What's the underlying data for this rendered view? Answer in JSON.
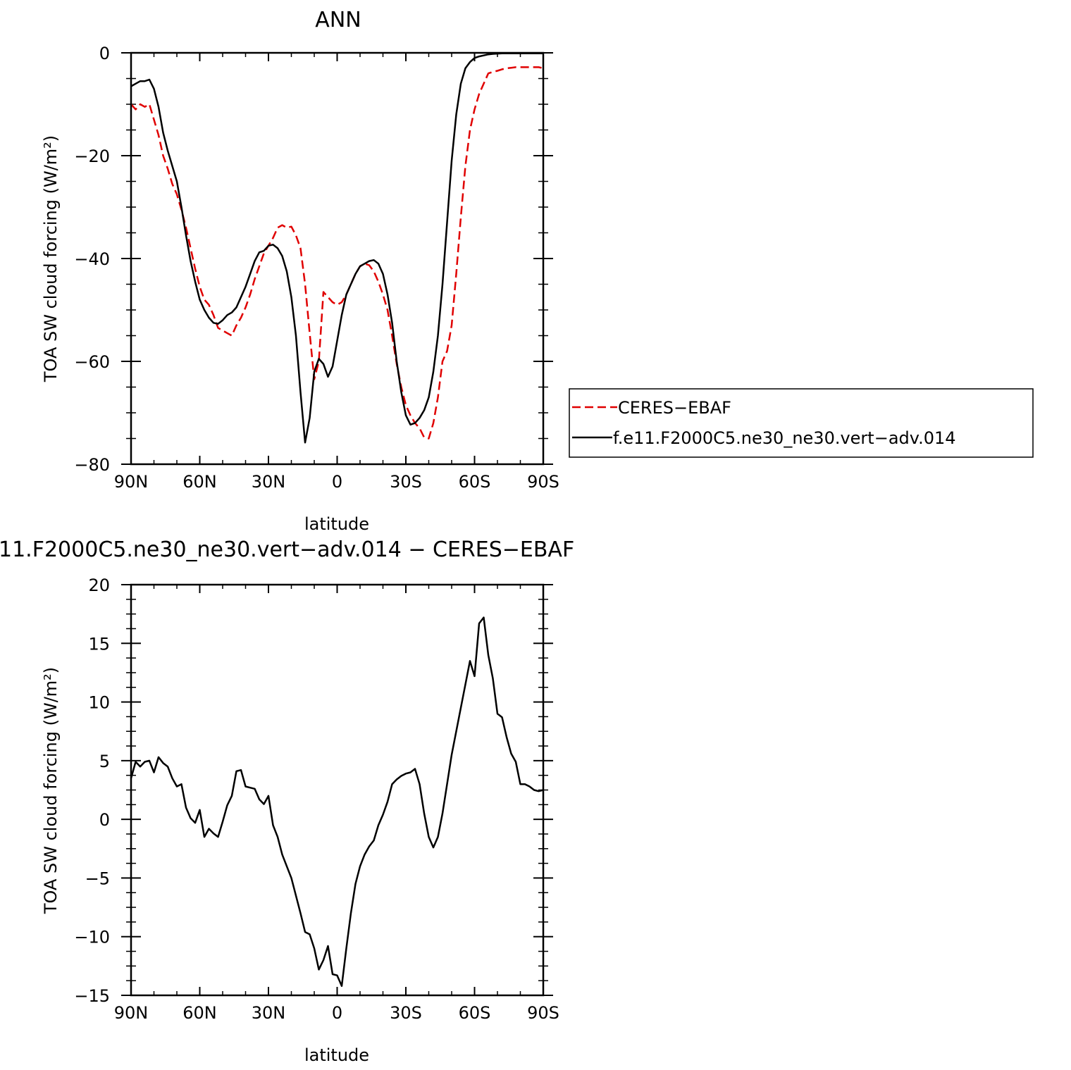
{
  "chart_data": [
    {
      "type": "line",
      "title": "ANN",
      "xlabel": "latitude",
      "ylabel": "TOA SW cloud forcing (W/m²)",
      "ylim": [
        -80,
        0
      ],
      "xlim": [
        90,
        -90
      ],
      "x_ticks": [
        90,
        60,
        30,
        0,
        -30,
        -60,
        -90
      ],
      "x_tick_labels": [
        "90N",
        "60N",
        "30N",
        "0",
        "30S",
        "60S",
        "90S"
      ],
      "y_ticks": [
        0,
        -20,
        -40,
        -60,
        -80
      ],
      "y_tick_labels": [
        "0",
        "−20",
        "−40",
        "−60",
        "−80"
      ],
      "legend_position": "right",
      "series": [
        {
          "name": "CERES−EBAF",
          "style": "dashed",
          "color": "#e00000",
          "x": [
            90,
            88,
            86,
            84,
            82,
            80,
            78,
            76,
            74,
            72,
            70,
            68,
            66,
            64,
            62,
            60,
            58,
            56,
            54,
            52,
            50,
            48,
            46,
            44,
            42,
            40,
            38,
            36,
            34,
            32,
            30,
            28,
            26,
            24,
            22,
            20,
            18,
            16,
            14,
            12,
            10,
            8,
            6,
            4,
            2,
            0,
            -2,
            -4,
            -6,
            -8,
            -10,
            -12,
            -14,
            -16,
            -18,
            -20,
            -22,
            -24,
            -26,
            -28,
            -30,
            -32,
            -34,
            -36,
            -38,
            -40,
            -42,
            -44,
            -46,
            -48,
            -50,
            -52,
            -54,
            -56,
            -58,
            -60,
            -62,
            -64,
            -66,
            -68,
            -70,
            -72,
            -74,
            -76,
            -78,
            -80,
            -82,
            -84,
            -86,
            -88,
            -90
          ],
          "values": [
            -10,
            -11,
            -10,
            -10.5,
            -10,
            -13,
            -16,
            -20,
            -22.5,
            -25.5,
            -27.5,
            -30.5,
            -34,
            -38,
            -42,
            -45.5,
            -48,
            -49,
            -51,
            -53.5,
            -54,
            -54.5,
            -55,
            -53,
            -51.5,
            -49.5,
            -47,
            -44,
            -41.5,
            -39,
            -37.5,
            -36,
            -34,
            -33.5,
            -34,
            -33.8,
            -35.5,
            -38,
            -45,
            -54.5,
            -63.5,
            -60,
            -46.5,
            -47.5,
            -48.5,
            -49,
            -48.5,
            -47,
            -45,
            -43,
            -41.5,
            -41,
            -41.3,
            -42.5,
            -44.5,
            -47,
            -50,
            -55,
            -60.5,
            -65,
            -68.5,
            -70.5,
            -72,
            -73,
            -74.8,
            -75,
            -72,
            -67,
            -60,
            -58,
            -53,
            -43,
            -32,
            -22,
            -15,
            -11,
            -8,
            -6,
            -4,
            -3.7,
            -3.5,
            -3.2,
            -3,
            -2.9,
            -2.8,
            -2.8,
            -2.8,
            -2.8,
            -2.8,
            -2.8,
            -3
          ]
        },
        {
          "name": "f.e11.F2000C5.ne30_ne30.vert−adv.014",
          "style": "solid",
          "color": "#000000",
          "x": [
            90,
            88,
            86,
            84,
            82,
            80,
            78,
            76,
            74,
            72,
            70,
            68,
            66,
            64,
            62,
            60,
            58,
            56,
            54,
            52,
            50,
            48,
            46,
            44,
            42,
            40,
            38,
            36,
            34,
            32,
            30,
            28,
            26,
            24,
            22,
            20,
            18,
            16,
            14,
            12,
            10,
            8,
            6,
            4,
            2,
            0,
            -2,
            -4,
            -6,
            -8,
            -10,
            -12,
            -14,
            -16,
            -18,
            -20,
            -22,
            -24,
            -26,
            -28,
            -30,
            -32,
            -34,
            -36,
            -38,
            -40,
            -42,
            -44,
            -46,
            -48,
            -50,
            -52,
            -54,
            -56,
            -58,
            -60,
            -62,
            -64,
            -66,
            -68,
            -70,
            -72,
            -74,
            -76,
            -78,
            -80,
            -82,
            -84,
            -86,
            -88,
            -90
          ],
          "values": [
            -6.5,
            -6,
            -5.5,
            -5.5,
            -5.2,
            -7,
            -10.5,
            -15.5,
            -19,
            -22,
            -25,
            -30,
            -35.5,
            -40.5,
            -44.5,
            -48,
            -50,
            -51.5,
            -52.5,
            -52.7,
            -52,
            -51,
            -50.5,
            -49.5,
            -47.5,
            -45.5,
            -43,
            -40.5,
            -38.8,
            -38.5,
            -37.5,
            -37.3,
            -38,
            -39.5,
            -42.5,
            -47.5,
            -55,
            -66,
            -75.8,
            -71,
            -62,
            -59.5,
            -60.5,
            -63,
            -61,
            -56,
            -51,
            -47,
            -45,
            -43,
            -41.5,
            -41,
            -40.5,
            -40.3,
            -41,
            -43,
            -47,
            -52.5,
            -60,
            -66,
            -70.5,
            -72.3,
            -72,
            -71,
            -69.5,
            -67,
            -62,
            -55,
            -45,
            -33,
            -21,
            -12,
            -6,
            -3,
            -1.8,
            -1,
            -0.7,
            -0.5,
            -0.3,
            -0.2,
            -0.15,
            -0.1,
            -0.1,
            -0.1,
            -0.1,
            -0.1,
            -0.1,
            -0.1,
            -0.1,
            -0.1,
            -0.1
          ]
        }
      ]
    },
    {
      "type": "line",
      "title": "11.F2000C5.ne30_ne30.vert−adv.014 − CERES−EBAF",
      "xlabel": "latitude",
      "ylabel": "TOA SW cloud forcing (W/m²)",
      "ylim": [
        -15,
        20
      ],
      "xlim": [
        90,
        -90
      ],
      "x_ticks": [
        90,
        60,
        30,
        0,
        -30,
        -60,
        -90
      ],
      "x_tick_labels": [
        "90N",
        "60N",
        "30N",
        "0",
        "30S",
        "60S",
        "90S"
      ],
      "y_ticks": [
        20,
        15,
        10,
        5,
        0,
        -5,
        -10,
        -15
      ],
      "y_tick_labels": [
        "20",
        "15",
        "10",
        "5",
        "0",
        "−5",
        "−10",
        "−15"
      ],
      "series": [
        {
          "style": "solid",
          "color": "#000000",
          "x": [
            90,
            88,
            86,
            84,
            82,
            80,
            78,
            76,
            74,
            72,
            70,
            68,
            66,
            64,
            62,
            60,
            58,
            56,
            54,
            52,
            50,
            48,
            46,
            44,
            42,
            40,
            38,
            36,
            34,
            32,
            30,
            28,
            26,
            24,
            22,
            20,
            18,
            16,
            14,
            12,
            10,
            8,
            6,
            4,
            2,
            0,
            -2,
            -4,
            -6,
            -8,
            -10,
            -12,
            -14,
            -16,
            -18,
            -20,
            -22,
            -24,
            -26,
            -28,
            -30,
            -32,
            -34,
            -36,
            -38,
            -40,
            -42,
            -44,
            -46,
            -48,
            -50,
            -52,
            -54,
            -56,
            -58,
            -60,
            -62,
            -64,
            -66,
            -68,
            -70,
            -72,
            -74,
            -76,
            -78,
            -80,
            -82,
            -84,
            -86,
            -88,
            -90
          ],
          "values": [
            3.5,
            4.9,
            4.5,
            4.9,
            5.0,
            4.0,
            5.3,
            4.8,
            4.5,
            3.5,
            2.8,
            3.0,
            1.0,
            0.1,
            -0.3,
            0.8,
            -1.5,
            -0.8,
            -1.2,
            -1.5,
            -0.2,
            1.2,
            2.0,
            4.1,
            4.2,
            2.8,
            2.7,
            2.6,
            1.7,
            1.3,
            2.0,
            -0.5,
            -1.5,
            -3.0,
            -4.0,
            -5.0,
            -6.5,
            -8.0,
            -9.6,
            -9.8,
            -11.0,
            -12.8,
            -12.0,
            -10.8,
            -13.2,
            -13.3,
            -14.2,
            -11.0,
            -8.0,
            -5.5,
            -4.0,
            -3.0,
            -2.3,
            -1.8,
            -0.5,
            0.4,
            1.5,
            3.0,
            3.4,
            3.7,
            3.9,
            4.0,
            4.3,
            3.0,
            0.5,
            -1.5,
            -2.4,
            -1.5,
            0.5,
            3.0,
            5.5,
            7.5,
            9.5,
            11.5,
            13.5,
            12.2,
            16.7,
            17.2,
            14.0,
            12.0,
            9.0,
            8.7,
            7.0,
            5.6,
            4.9,
            3.0,
            3.0,
            2.8,
            2.5,
            2.4,
            2.5
          ]
        }
      ]
    }
  ]
}
